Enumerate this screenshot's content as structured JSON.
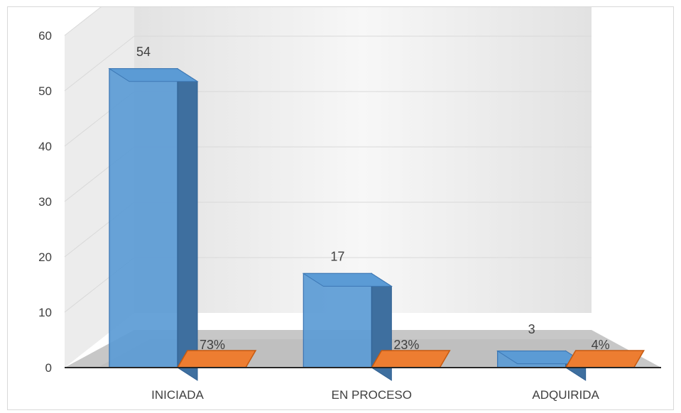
{
  "chart_data": {
    "type": "bar",
    "title": "",
    "xlabel": "",
    "ylabel": "",
    "ylim": [
      0,
      60
    ],
    "yticks": [
      0,
      10,
      20,
      30,
      40,
      50,
      60
    ],
    "grid": true,
    "legend": "none",
    "categories": [
      "INICIADA",
      "EN PROCESO",
      "ADQUIRIDA"
    ],
    "series": [
      {
        "color": "#5B9BD5",
        "values": [
          54,
          17,
          3
        ],
        "labels": [
          "54",
          "17",
          "3"
        ]
      },
      {
        "color": "#ED7D31",
        "values": [
          0.73,
          0.23,
          0.04
        ],
        "labels": [
          "73%",
          "23%",
          "4%"
        ]
      }
    ]
  }
}
